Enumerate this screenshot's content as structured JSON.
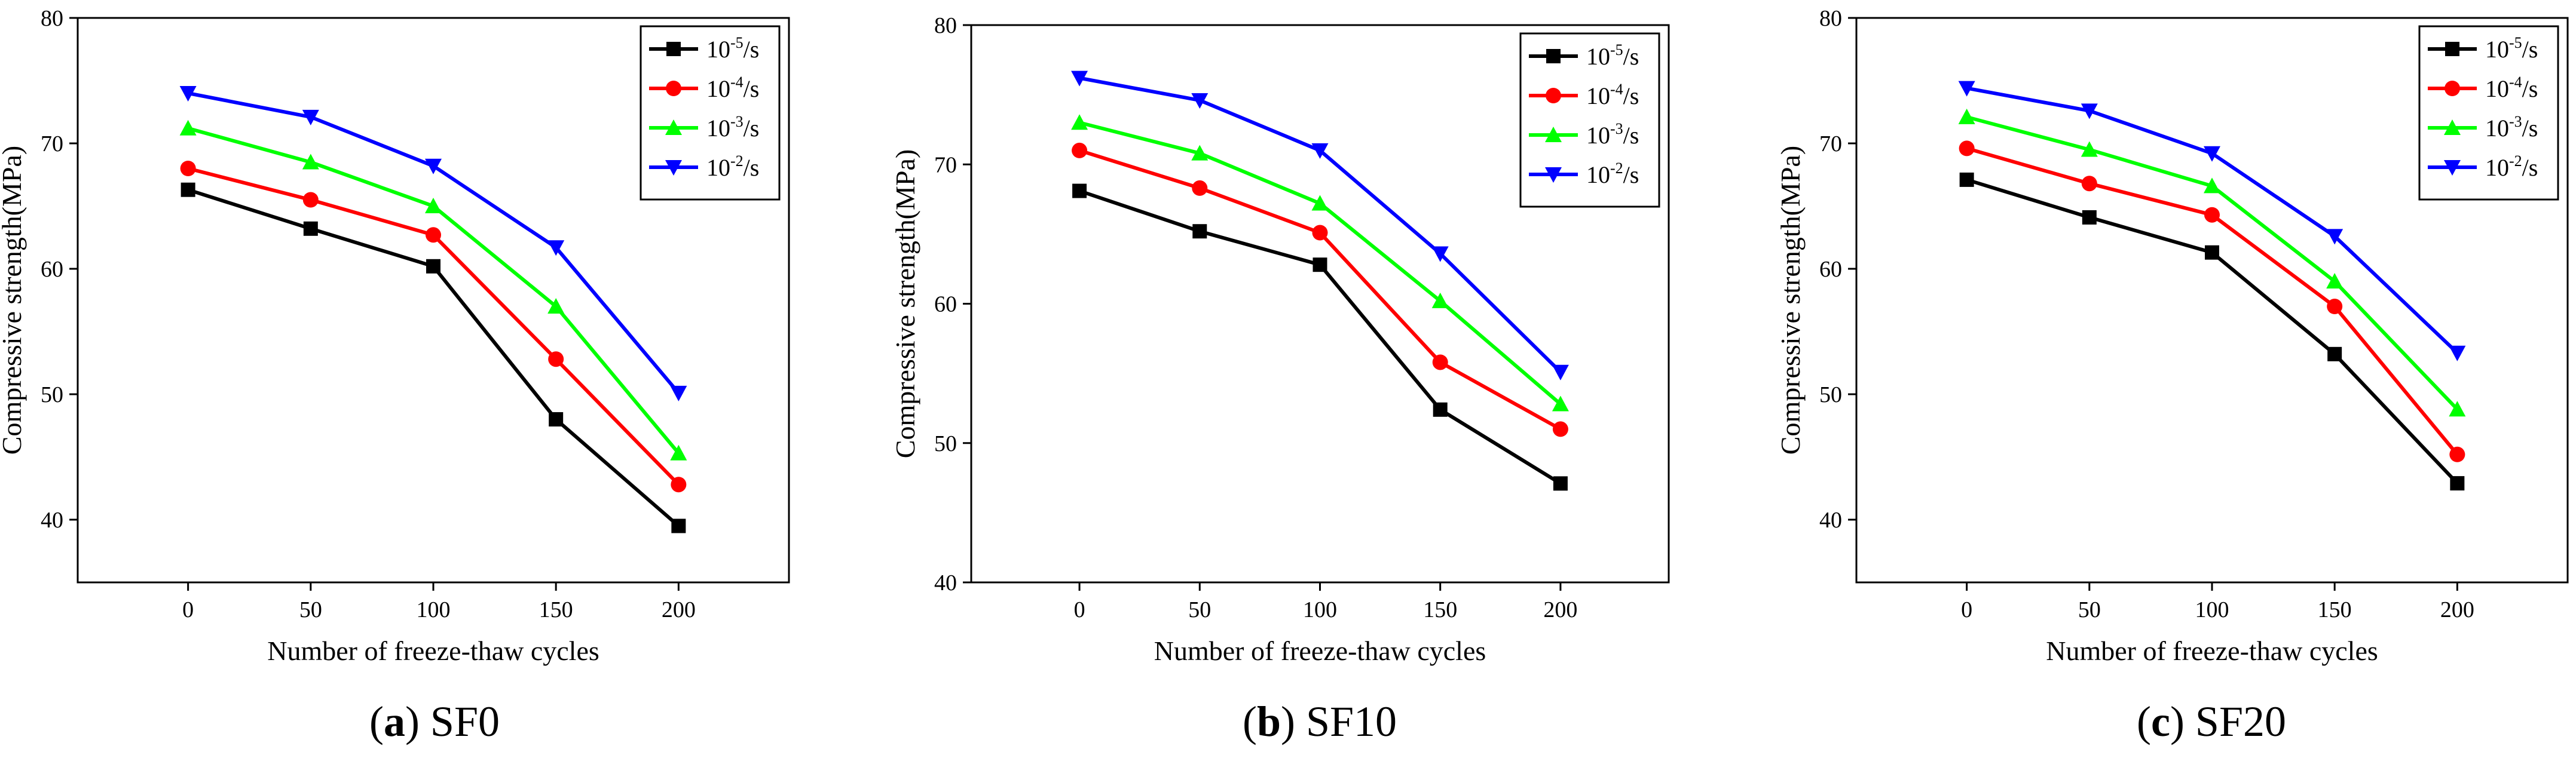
{
  "series_style": [
    {
      "color": "#000000",
      "marker": "square"
    },
    {
      "color": "#ff0000",
      "marker": "circle"
    },
    {
      "color": "#00ff00",
      "marker": "triangle-up"
    },
    {
      "color": "#0000ff",
      "marker": "triangle-down"
    }
  ],
  "legend_entries": [
    {
      "base": "10",
      "exp": "-5",
      "unit": "/s"
    },
    {
      "base": "10",
      "exp": "-4",
      "unit": "/s"
    },
    {
      "base": "10",
      "exp": "-3",
      "unit": "/s"
    },
    {
      "base": "10",
      "exp": "-2",
      "unit": "/s"
    }
  ],
  "chart_data": [
    {
      "type": "line",
      "caption_letter": "a",
      "caption_text": ") SF0",
      "caption_open": "(",
      "xlabel": "Number of freeze-thaw cycles",
      "ylabel": "Compressive strength(MPa)",
      "x": [
        0,
        50,
        100,
        150,
        200
      ],
      "xticks": [
        "0",
        "50",
        "100",
        "150",
        "200"
      ],
      "xlim": [
        -45,
        245
      ],
      "ylim": [
        35,
        80
      ],
      "yticks": [
        40,
        50,
        60,
        70,
        80
      ],
      "legend_position": "top-right",
      "series": [
        {
          "name": "10^-5/s",
          "values": [
            66.3,
            63.2,
            60.2,
            48.0,
            39.5
          ]
        },
        {
          "name": "10^-4/s",
          "values": [
            68.0,
            65.5,
            62.7,
            52.8,
            42.8
          ]
        },
        {
          "name": "10^-3/s",
          "values": [
            71.2,
            68.5,
            65.0,
            57.0,
            45.3
          ]
        },
        {
          "name": "10^-2/s",
          "values": [
            74.0,
            72.1,
            68.2,
            61.7,
            50.1
          ]
        }
      ]
    },
    {
      "type": "line",
      "caption_letter": "b",
      "caption_text": ") SF10",
      "caption_open": "(",
      "xlabel": "Number of freeze-thaw cycles",
      "ylabel": "Compressive strength(MPa)",
      "x": [
        0,
        50,
        100,
        150,
        200
      ],
      "xticks": [
        "0",
        "50",
        "100",
        "150",
        "200"
      ],
      "xlim": [
        -45,
        245
      ],
      "ylim": [
        40,
        80
      ],
      "yticks": [
        40,
        50,
        60,
        70,
        80
      ],
      "legend_position": "top-right",
      "series": [
        {
          "name": "10^-5/s",
          "values": [
            68.1,
            65.2,
            62.8,
            52.4,
            47.1
          ]
        },
        {
          "name": "10^-4/s",
          "values": [
            71.0,
            68.3,
            65.1,
            55.8,
            51.0
          ]
        },
        {
          "name": "10^-3/s",
          "values": [
            73.0,
            70.8,
            67.2,
            60.2,
            52.8
          ]
        },
        {
          "name": "10^-2/s",
          "values": [
            76.2,
            74.6,
            71.0,
            63.6,
            55.1
          ]
        }
      ]
    },
    {
      "type": "line",
      "caption_letter": "c",
      "caption_text": ") SF20",
      "caption_open": "(",
      "xlabel": "Number of freeze-thaw cycles",
      "ylabel": "Compressive strength(MPa)",
      "x": [
        0,
        50,
        100,
        150,
        200
      ],
      "xticks": [
        "0",
        "50",
        "100",
        "150",
        "200"
      ],
      "xlim": [
        -45,
        245
      ],
      "ylim": [
        35,
        80
      ],
      "yticks": [
        40,
        50,
        60,
        70,
        80
      ],
      "legend_position": "top-right",
      "series": [
        {
          "name": "10^-5/s",
          "values": [
            67.1,
            64.1,
            61.3,
            53.2,
            42.9
          ]
        },
        {
          "name": "10^-4/s",
          "values": [
            69.6,
            66.8,
            64.3,
            57.0,
            45.2
          ]
        },
        {
          "name": "10^-3/s",
          "values": [
            72.1,
            69.5,
            66.6,
            59.0,
            48.8
          ]
        },
        {
          "name": "10^-2/s",
          "values": [
            74.4,
            72.6,
            69.2,
            62.6,
            53.3
          ]
        }
      ]
    }
  ]
}
